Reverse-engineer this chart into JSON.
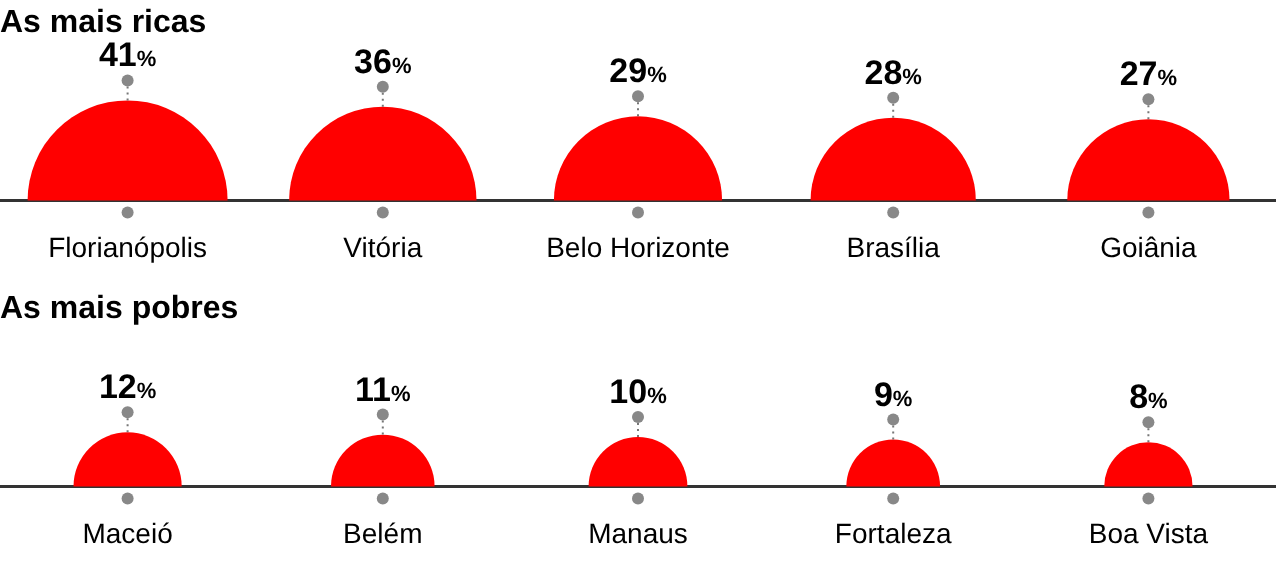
{
  "chart_data": [
    {
      "type": "other",
      "title": "As mais ricas",
      "categories": [
        "Florianópolis",
        "Vitória",
        "Belo Horizonte",
        "Brasília",
        "Goiânia"
      ],
      "values": [
        41,
        36,
        29,
        28,
        27
      ],
      "value_labels": [
        "41%",
        "36%",
        "29%",
        "28%",
        "27%"
      ],
      "color": "#ff0000"
    },
    {
      "type": "other",
      "title": "As mais pobres",
      "categories": [
        "Maceió",
        "Belém",
        "Manaus",
        "Fortaleza",
        "Boa Vista"
      ],
      "values": [
        12,
        11,
        10,
        9,
        8
      ],
      "value_labels": [
        "12%",
        "11%",
        "10%",
        "9%",
        "8%"
      ],
      "color": "#ff0000"
    }
  ]
}
